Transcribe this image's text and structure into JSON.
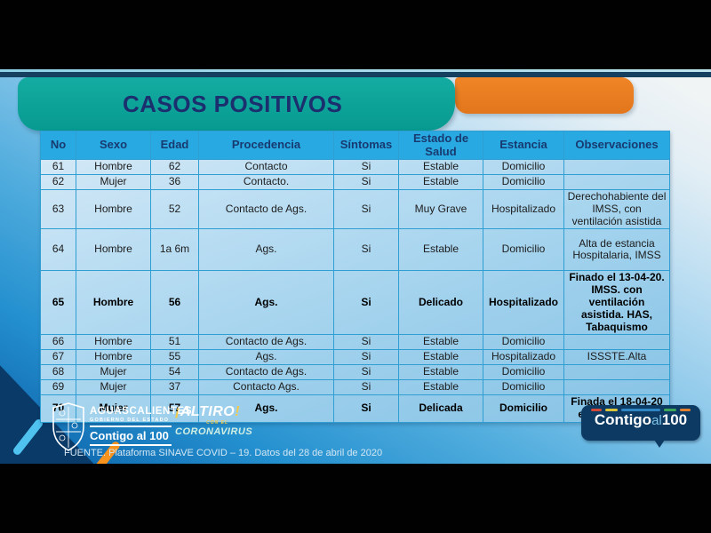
{
  "title": "CASOS POSITIVOS",
  "table": {
    "columns": [
      "No",
      "Sexo",
      "Edad",
      "Procedencia",
      "Síntomas",
      "Estado de Salud",
      "Estancia",
      "Observaciones"
    ],
    "rows": [
      {
        "no": "61",
        "sexo": "Hombre",
        "edad": "62",
        "procedencia": "Contacto",
        "sintomas": "Si",
        "estado": "Estable",
        "estancia": "Domicilio",
        "observaciones": "",
        "bold": false
      },
      {
        "no": "62",
        "sexo": "Mujer",
        "edad": "36",
        "procedencia": "Contacto.",
        "sintomas": "Si",
        "estado": "Estable",
        "estancia": "Domicilio",
        "observaciones": "",
        "bold": false
      },
      {
        "no": "63",
        "sexo": "Hombre",
        "edad": "52",
        "procedencia": "Contacto de Ags.",
        "sintomas": "Si",
        "estado": "Muy Grave",
        "estancia": "Hospitalizado",
        "observaciones": "Derechohabiente del IMSS, con ventilación asistida",
        "bold": false
      },
      {
        "no": "64",
        "sexo": "Hombre",
        "edad": "1a 6m",
        "procedencia": "Ags.",
        "sintomas": "Si",
        "estado": "Estable",
        "estancia": "Domicilio",
        "observaciones": "Alta de estancia Hospitalaria, IMSS",
        "bold": false
      },
      {
        "no": "65",
        "sexo": "Hombre",
        "edad": "56",
        "procedencia": "Ags.",
        "sintomas": "Si",
        "estado": "Delicado",
        "estancia": "Hospitalizado",
        "observaciones": "Finado el 13-04-20. IMSS. con ventilación asistida. HAS, Tabaquismo",
        "bold": true
      },
      {
        "no": "66",
        "sexo": "Hombre",
        "edad": "51",
        "procedencia": "Contacto de Ags.",
        "sintomas": "Si",
        "estado": "Estable",
        "estancia": "Domicilio",
        "observaciones": "",
        "bold": false
      },
      {
        "no": "67",
        "sexo": "Hombre",
        "edad": "55",
        "procedencia": "Ags.",
        "sintomas": "Si",
        "estado": "Estable",
        "estancia": "Hospitalizado",
        "observaciones": "ISSSTE.Alta",
        "bold": false
      },
      {
        "no": "68",
        "sexo": "Mujer",
        "edad": "54",
        "procedencia": "Contacto de Ags.",
        "sintomas": "Si",
        "estado": "Estable",
        "estancia": "Domicilio",
        "observaciones": "",
        "bold": false
      },
      {
        "no": "69",
        "sexo": "Mujer",
        "edad": "37",
        "procedencia": "Contacto Ags.",
        "sintomas": "Si",
        "estado": "Estable",
        "estancia": "Domicilio",
        "observaciones": "",
        "bold": false
      },
      {
        "no": "70",
        "sexo": "Mujer",
        "edad": "57",
        "procedencia": "Ags.",
        "sintomas": "Si",
        "estado": "Delicada",
        "estancia": "Domicilio",
        "observaciones": "Finada el 18-04-20 en su domicilio",
        "bold": true
      }
    ]
  },
  "footer": {
    "gov_logo": {
      "line1": "AGUASCALIENTES",
      "line2": "GOBIERNO DEL ESTADO",
      "line3": "Contigo al 100"
    },
    "altiro_logo": {
      "line1": "ALTIRO",
      "line2": "CON EL",
      "line3": "CORONAVIRUS"
    },
    "contigo_badge": {
      "word1": "Contigo",
      "word2": "al",
      "word3": "100"
    },
    "source": "FUENTE. Plataforma SINAVE COVID – 19. Datos del 28 de abril de 2020"
  },
  "colors": {
    "teal_block": "#0aa399",
    "orange_block": "#e8801f",
    "header_row": "#29a9e1",
    "title_text": "#1b2f6e",
    "body_rows": "#a8d4ee",
    "badge_navy": "#0d3a63",
    "background_bottom_left": "#0a5ea6"
  }
}
